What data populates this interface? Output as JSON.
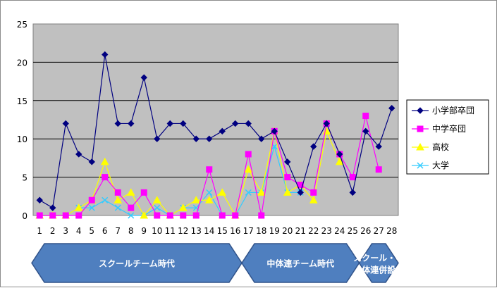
{
  "chart_data": {
    "type": "line",
    "x": [
      1,
      2,
      3,
      4,
      5,
      6,
      7,
      8,
      9,
      10,
      11,
      12,
      13,
      14,
      15,
      16,
      17,
      18,
      19,
      20,
      21,
      22,
      23,
      24,
      25,
      26,
      27,
      28
    ],
    "ylim": [
      0,
      25
    ],
    "yticks": [
      0,
      5,
      10,
      15,
      20,
      25
    ],
    "grid": true,
    "legend_position": "right",
    "series": [
      {
        "name": "小学部卒団",
        "color": "#000080",
        "marker": "diamond",
        "values": [
          2,
          1,
          12,
          8,
          7,
          21,
          12,
          12,
          18,
          10,
          12,
          12,
          10,
          10,
          11,
          12,
          12,
          10,
          11,
          7,
          3,
          9,
          12,
          8,
          3,
          11,
          9,
          14
        ]
      },
      {
        "name": "中学卒団",
        "color": "#ff00ff",
        "marker": "square",
        "values": [
          0,
          0,
          0,
          0,
          2,
          5,
          3,
          1,
          3,
          0,
          0,
          0,
          0,
          6,
          0,
          0,
          8,
          0,
          11,
          5,
          4,
          3,
          12,
          8,
          5,
          13,
          6,
          null
        ]
      },
      {
        "name": "高校",
        "color": "#ffff00",
        "marker": "triangle",
        "values": [
          0,
          0,
          0,
          1,
          2,
          7,
          2,
          3,
          0,
          2,
          0,
          1,
          2,
          2,
          3,
          0,
          6,
          3,
          11,
          3,
          4,
          2,
          11,
          7,
          null,
          null,
          null,
          null
        ]
      },
      {
        "name": "大学",
        "color": "#33ccff",
        "marker": "x",
        "values": [
          0,
          0,
          0,
          1,
          1,
          2,
          1,
          0,
          0,
          1,
          0,
          1,
          1,
          3,
          0,
          0,
          3,
          3,
          9,
          3,
          3,
          null,
          null,
          null,
          null,
          null,
          null,
          null
        ]
      }
    ],
    "phases": [
      {
        "label": "スクールチーム時代",
        "from": 1,
        "to": 16
      },
      {
        "label": "中体連チーム時代",
        "from": 17,
        "to": 25
      },
      {
        "label_lines": [
          "スクール・中",
          "体連併設"
        ],
        "from": 26,
        "to": 28
      }
    ]
  }
}
